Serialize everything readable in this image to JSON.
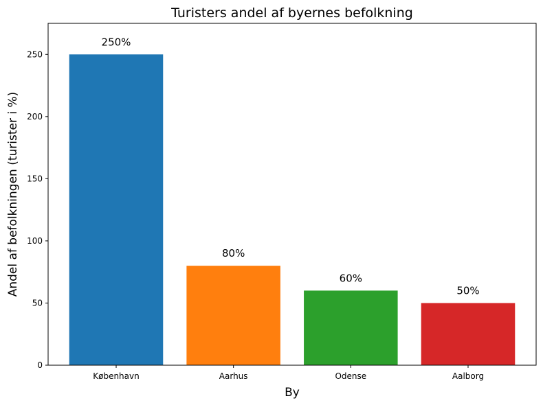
{
  "chart_data": {
    "type": "bar",
    "title": "Turisters andel af byernes befolkning",
    "xlabel": "By",
    "ylabel": "Andel af befolkningen (turister i %)",
    "categories": [
      "København",
      "Aarhus",
      "Odense",
      "Aalborg"
    ],
    "values": [
      250,
      80,
      60,
      50
    ],
    "value_labels": [
      "250%",
      "80%",
      "60%",
      "50%"
    ],
    "colors": [
      "#1f77b4",
      "#ff7f0e",
      "#2ca02c",
      "#d62728"
    ],
    "ylim": [
      0,
      275
    ],
    "yticks": [
      0,
      50,
      100,
      150,
      200,
      250
    ],
    "grid": false,
    "legend": "none"
  }
}
